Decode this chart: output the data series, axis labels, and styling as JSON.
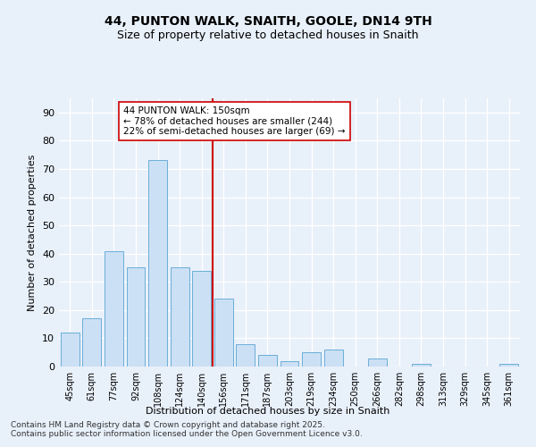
{
  "title": "44, PUNTON WALK, SNAITH, GOOLE, DN14 9TH",
  "subtitle": "Size of property relative to detached houses in Snaith",
  "xlabel": "Distribution of detached houses by size in Snaith",
  "ylabel": "Number of detached properties",
  "categories": [
    "45sqm",
    "61sqm",
    "77sqm",
    "92sqm",
    "108sqm",
    "124sqm",
    "140sqm",
    "156sqm",
    "171sqm",
    "187sqm",
    "203sqm",
    "219sqm",
    "234sqm",
    "250sqm",
    "266sqm",
    "282sqm",
    "298sqm",
    "313sqm",
    "329sqm",
    "345sqm",
    "361sqm"
  ],
  "values": [
    12,
    17,
    41,
    35,
    73,
    35,
    34,
    24,
    8,
    4,
    2,
    5,
    6,
    0,
    3,
    0,
    1,
    0,
    0,
    0,
    1
  ],
  "bar_color": "#cce0f5",
  "bar_edge_color": "#6aaed6",
  "vline_color": "#cc0000",
  "vline_x": 7.5,
  "annotation_text": "44 PUNTON WALK: 150sqm\n← 78% of detached houses are smaller (244)\n22% of semi-detached houses are larger (69) →",
  "annotation_box_color": "white",
  "annotation_box_edge_color": "#cc0000",
  "ylim": [
    0,
    95
  ],
  "yticks": [
    0,
    10,
    20,
    30,
    40,
    50,
    60,
    70,
    80,
    90
  ],
  "background_color": "#e8f0fa",
  "grid_color": "white",
  "footer_text": "Contains HM Land Registry data © Crown copyright and database right 2025.\nContains public sector information licensed under the Open Government Licence v3.0.",
  "title_fontsize": 10,
  "subtitle_fontsize": 9,
  "annotation_fontsize": 7.5,
  "footer_fontsize": 6.5,
  "ylabel_fontsize": 8,
  "xlabel_fontsize": 8
}
